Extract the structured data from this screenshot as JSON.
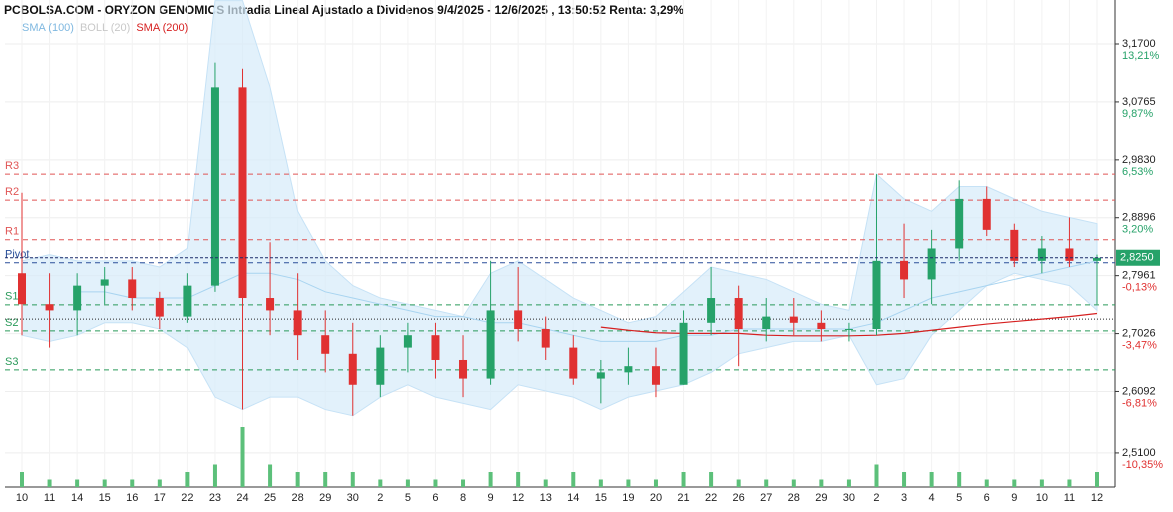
{
  "chart_data": {
    "type": "candlestick",
    "title": "PCBOLSA.COM - ORYZON GENOMICS Intradia Lineal Ajustado a Dividenos 9/4/2025 - 12/6/2025 , 13:50:52 Renta: 3,29%",
    "categories": [
      "10",
      "11",
      "14",
      "15",
      "16",
      "17",
      "22",
      "23",
      "24",
      "25",
      "28",
      "29",
      "30",
      "2",
      "5",
      "6",
      "8",
      "9",
      "12",
      "13",
      "14",
      "15",
      "19",
      "20",
      "21",
      "22",
      "26",
      "27",
      "28",
      "29",
      "30",
      "2",
      "3",
      "4",
      "5",
      "6",
      "9",
      "10",
      "11",
      "12"
    ],
    "open": [
      2.8,
      2.75,
      2.74,
      2.78,
      2.79,
      2.76,
      2.73,
      2.78,
      3.1,
      2.76,
      2.74,
      2.7,
      2.67,
      2.62,
      2.68,
      2.7,
      2.66,
      2.63,
      2.74,
      2.71,
      2.68,
      2.63,
      2.64,
      2.65,
      2.62,
      2.72,
      2.76,
      2.71,
      2.73,
      2.72,
      2.71,
      2.71,
      2.82,
      2.79,
      2.84,
      2.92,
      2.87,
      2.82,
      2.84,
      2.82
    ],
    "high": [
      2.93,
      2.8,
      2.8,
      2.81,
      2.81,
      2.77,
      2.8,
      3.14,
      3.13,
      2.85,
      2.8,
      2.74,
      2.72,
      2.7,
      2.72,
      2.72,
      2.7,
      2.82,
      2.81,
      2.73,
      2.7,
      2.66,
      2.68,
      2.68,
      2.74,
      2.81,
      2.78,
      2.76,
      2.76,
      2.74,
      2.72,
      2.96,
      2.88,
      2.87,
      2.95,
      2.94,
      2.88,
      2.86,
      2.89,
      2.83
    ],
    "low": [
      2.7,
      2.68,
      2.7,
      2.75,
      2.74,
      2.71,
      2.72,
      2.77,
      2.58,
      2.7,
      2.66,
      2.64,
      2.57,
      2.6,
      2.64,
      2.63,
      2.6,
      2.62,
      2.69,
      2.66,
      2.62,
      2.59,
      2.62,
      2.6,
      2.62,
      2.7,
      2.65,
      2.69,
      2.7,
      2.69,
      2.69,
      2.7,
      2.76,
      2.75,
      2.82,
      2.86,
      2.81,
      2.8,
      2.81,
      2.75
    ],
    "close": [
      2.75,
      2.74,
      2.78,
      2.79,
      2.76,
      2.73,
      2.78,
      3.1,
      2.76,
      2.74,
      2.7,
      2.67,
      2.62,
      2.68,
      2.7,
      2.66,
      2.63,
      2.74,
      2.71,
      2.68,
      2.63,
      2.64,
      2.65,
      2.62,
      2.72,
      2.76,
      2.71,
      2.73,
      2.72,
      2.71,
      2.71,
      2.82,
      2.79,
      2.84,
      2.92,
      2.87,
      2.82,
      2.84,
      2.82,
      2.825
    ],
    "volume": [
      2,
      1,
      1,
      1,
      1,
      1,
      2,
      3,
      8,
      3,
      2,
      2,
      2,
      1,
      1,
      1,
      1,
      2,
      2,
      1,
      2,
      1,
      1,
      1,
      2,
      2,
      1,
      1,
      1,
      1,
      1,
      3,
      2,
      2,
      2,
      1,
      1,
      1,
      1,
      2
    ],
    "up_color": "#26a269",
    "down_color": "#e03131",
    "volume_color": "#5cc07a",
    "series": [
      {
        "name": "SMA (100)",
        "color": "#a8d4f0",
        "values": [
          null,
          null,
          2.77,
          2.77,
          2.76,
          2.76,
          2.76,
          2.78,
          2.8,
          2.8,
          2.79,
          2.77,
          2.76,
          2.75,
          2.74,
          2.73,
          2.73,
          2.72,
          2.72,
          2.71,
          2.7,
          2.69,
          2.69,
          2.69,
          2.7,
          2.7,
          2.71,
          2.71,
          2.71,
          2.71,
          2.71,
          2.72,
          2.74,
          2.76,
          2.77,
          2.78,
          2.79,
          2.8,
          2.81,
          2.82
        ]
      },
      {
        "name": "BOLL (20)",
        "color": "#d6ebfa",
        "upper": [
          2.82,
          2.83,
          2.82,
          2.82,
          2.82,
          2.81,
          2.84,
          3.24,
          3.24,
          3.1,
          2.9,
          2.82,
          2.78,
          2.76,
          2.75,
          2.74,
          2.73,
          2.8,
          2.82,
          2.79,
          2.76,
          2.74,
          2.72,
          2.73,
          2.77,
          2.81,
          2.8,
          2.79,
          2.77,
          2.75,
          2.74,
          2.96,
          2.92,
          2.9,
          2.94,
          2.94,
          2.92,
          2.9,
          2.89,
          2.88
        ],
        "lower": [
          2.7,
          2.69,
          2.7,
          2.72,
          2.72,
          2.71,
          2.68,
          2.6,
          2.58,
          2.6,
          2.6,
          2.58,
          2.57,
          2.6,
          2.62,
          2.6,
          2.59,
          2.58,
          2.62,
          2.61,
          2.6,
          2.58,
          2.6,
          2.61,
          2.62,
          2.64,
          2.67,
          2.68,
          2.69,
          2.69,
          2.7,
          2.62,
          2.63,
          2.7,
          2.74,
          2.78,
          2.8,
          2.79,
          2.78,
          2.74
        ]
      },
      {
        "name": "SMA (200)",
        "color": "#d62020",
        "values": [
          null,
          null,
          null,
          null,
          null,
          null,
          null,
          null,
          null,
          null,
          null,
          null,
          null,
          null,
          null,
          null,
          null,
          null,
          null,
          null,
          null,
          2.713,
          2.708,
          2.704,
          2.703,
          2.703,
          2.703,
          2.7,
          2.699,
          2.699,
          2.699,
          2.7,
          2.703,
          2.708,
          2.713,
          2.718,
          2.722,
          2.726,
          2.73,
          2.735
        ]
      }
    ],
    "levels": [
      {
        "label": "R3",
        "value": 2.96,
        "color": "#e05555"
      },
      {
        "label": "R2",
        "value": 2.918,
        "color": "#e05555"
      },
      {
        "label": "R1",
        "value": 2.854,
        "color": "#e05555"
      },
      {
        "label": "Pivot",
        "value": 2.817,
        "color": "#2a4f9a"
      },
      {
        "label": "S1",
        "value": 2.749,
        "color": "#2a9a5a"
      },
      {
        "label": "S2",
        "value": 2.707,
        "color": "#2a9a5a"
      },
      {
        "label": "S3",
        "value": 2.644,
        "color": "#2a9a5a"
      }
    ],
    "reference_level": 2.726,
    "last_price": {
      "value": 2.825,
      "label": "2,8250"
    },
    "ylim": [
      2.455,
      3.241
    ],
    "yticks": [
      {
        "value": 3.17,
        "label": "3,1700"
      },
      {
        "value": 3.0765,
        "label": "3,0765"
      },
      {
        "value": 2.983,
        "label": "2,9830"
      },
      {
        "value": 2.8896,
        "label": "2,8896"
      },
      {
        "value": 2.7961,
        "label": "2,7961"
      },
      {
        "value": 2.7026,
        "label": "2,7026"
      },
      {
        "value": 2.6092,
        "label": "2,6092"
      },
      {
        "value": 2.51,
        "label": "2,5100"
      }
    ],
    "ytick_pct": [
      "13,21%",
      "9,87%",
      "6,53%",
      "3,20%",
      "-0,13%",
      "-3,47%",
      "-6,81%",
      "-10,35%"
    ],
    "grid": true
  }
}
